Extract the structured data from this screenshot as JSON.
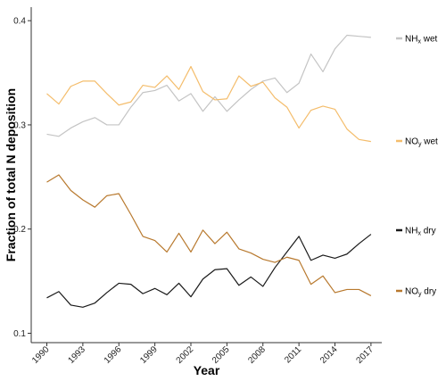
{
  "chart_data": {
    "type": "line",
    "xlabel": "Year",
    "ylabel": "Fraction of total N deposition",
    "xlim": [
      1990,
      2017
    ],
    "ylim": [
      0.1,
      0.4
    ],
    "x_ticks": [
      1990,
      1993,
      1996,
      1999,
      2002,
      2005,
      2008,
      2011,
      2014,
      2017
    ],
    "x_tick_labels": [
      "1990",
      "1993",
      "1996",
      "1999",
      "2002",
      "2005",
      "2008",
      "2011",
      "2014",
      "2017"
    ],
    "y_ticks": [
      0.1,
      0.2,
      0.3,
      0.4
    ],
    "y_tick_labels": [
      "0.1",
      "0.2",
      "0.3",
      "0.4"
    ],
    "grid": false,
    "legend_placement": "right, next to line ends",
    "x": [
      1990,
      1991,
      1992,
      1993,
      1994,
      1995,
      1996,
      1997,
      1998,
      1999,
      2000,
      2001,
      2002,
      2003,
      2004,
      2005,
      2006,
      2007,
      2008,
      2009,
      2010,
      2011,
      2012,
      2013,
      2014,
      2015,
      2016,
      2017
    ],
    "series": [
      {
        "name": "NHx wet",
        "label_main": "NH",
        "label_sub": "x",
        "label_suffix": " wet",
        "color": "#c4c4c4",
        "values": [
          0.291,
          0.289,
          0.297,
          0.303,
          0.307,
          0.3,
          0.3,
          0.317,
          0.331,
          0.333,
          0.338,
          0.323,
          0.33,
          0.313,
          0.327,
          0.313,
          0.324,
          0.334,
          0.342,
          0.345,
          0.331,
          0.34,
          0.368,
          0.351,
          0.373,
          0.386,
          0.385,
          0.384
        ]
      },
      {
        "name": "NOy wet",
        "label_main": "NO",
        "label_sub": "y",
        "label_suffix": " wet",
        "color": "#f4bd6c",
        "values": [
          0.33,
          0.32,
          0.337,
          0.342,
          0.342,
          0.33,
          0.319,
          0.322,
          0.338,
          0.336,
          0.347,
          0.334,
          0.356,
          0.332,
          0.324,
          0.325,
          0.347,
          0.337,
          0.341,
          0.326,
          0.317,
          0.297,
          0.314,
          0.318,
          0.315,
          0.296,
          0.286,
          0.284
        ]
      },
      {
        "name": "NHx dry",
        "label_main": "NH",
        "label_sub": "x",
        "label_suffix": " dry",
        "color": "#1a1a1a",
        "values": [
          0.134,
          0.14,
          0.127,
          0.125,
          0.129,
          0.139,
          0.148,
          0.147,
          0.138,
          0.143,
          0.137,
          0.148,
          0.135,
          0.152,
          0.161,
          0.162,
          0.146,
          0.154,
          0.145,
          0.163,
          0.178,
          0.193,
          0.17,
          0.175,
          0.172,
          0.176,
          0.186,
          0.195
        ]
      },
      {
        "name": "NOy dry",
        "label_main": "NO",
        "label_sub": "y",
        "label_suffix": " dry",
        "color": "#b8792e",
        "values": [
          0.245,
          0.252,
          0.237,
          0.228,
          0.221,
          0.232,
          0.234,
          0.214,
          0.193,
          0.189,
          0.178,
          0.196,
          0.178,
          0.199,
          0.186,
          0.197,
          0.181,
          0.177,
          0.171,
          0.168,
          0.173,
          0.17,
          0.147,
          0.155,
          0.139,
          0.142,
          0.142,
          0.136
        ]
      }
    ]
  }
}
